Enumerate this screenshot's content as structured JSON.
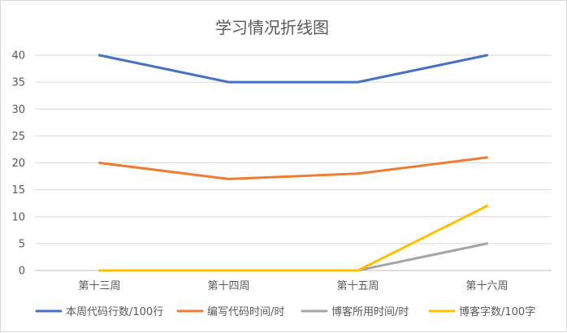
{
  "chart_data": {
    "type": "line",
    "title": "学习情况折线图",
    "xlabel": "",
    "ylabel": "",
    "categories": [
      "第十三周",
      "第十四周",
      "第十五周",
      "第十六周"
    ],
    "ylim": [
      0,
      40
    ],
    "yticks": [
      "0",
      "5",
      "10",
      "15",
      "20",
      "25",
      "30",
      "35",
      "40"
    ],
    "grid": true,
    "legend_position": "bottom",
    "series": [
      {
        "name": "本周代码行数/100行",
        "color": "#4472C4",
        "values": [
          40,
          35,
          35,
          40
        ]
      },
      {
        "name": "编写代码时间/时",
        "color": "#ED7D31",
        "values": [
          20,
          17,
          18,
          21
        ]
      },
      {
        "name": "博客所用时间/时",
        "color": "#A5A5A5",
        "values": [
          0,
          0,
          0,
          5
        ]
      },
      {
        "name": "博客字数/100字",
        "color": "#FFC000",
        "values": [
          0,
          0,
          0,
          12
        ]
      }
    ]
  }
}
